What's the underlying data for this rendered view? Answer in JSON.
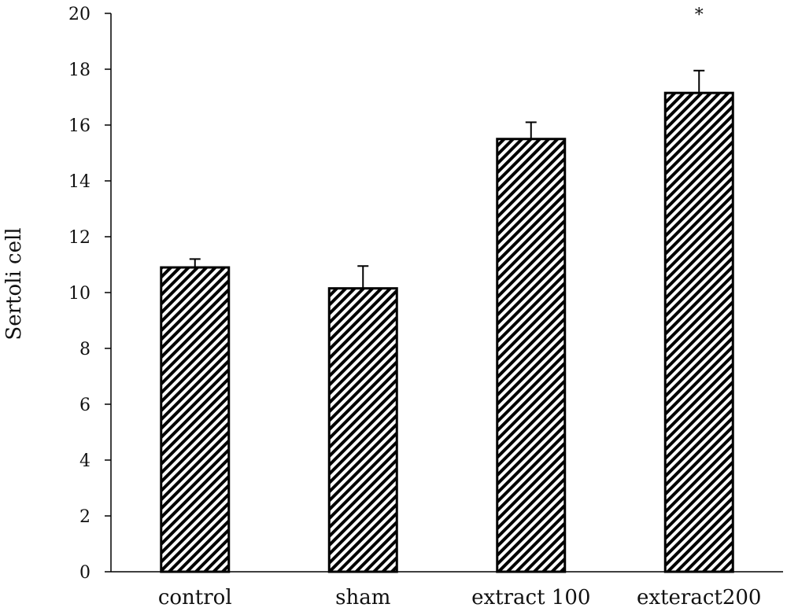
{
  "chart_data": {
    "type": "bar",
    "title": "",
    "xlabel": "",
    "ylabel": "Sertoli cell",
    "ylim": [
      0,
      20
    ],
    "yticks": [
      0,
      2,
      4,
      6,
      8,
      10,
      12,
      14,
      16,
      18,
      20
    ],
    "grid": false,
    "legend": "none",
    "categories": [
      "control",
      "sham",
      "extract 100",
      "exteract200"
    ],
    "values": [
      10.9,
      10.15,
      15.5,
      17.15
    ],
    "errors": [
      0.3,
      0.8,
      0.6,
      0.8
    ],
    "annotations": [
      {
        "category_index": 3,
        "text": "*"
      }
    ],
    "bar_fill": "hatched",
    "bar_stroke": "#000000"
  }
}
